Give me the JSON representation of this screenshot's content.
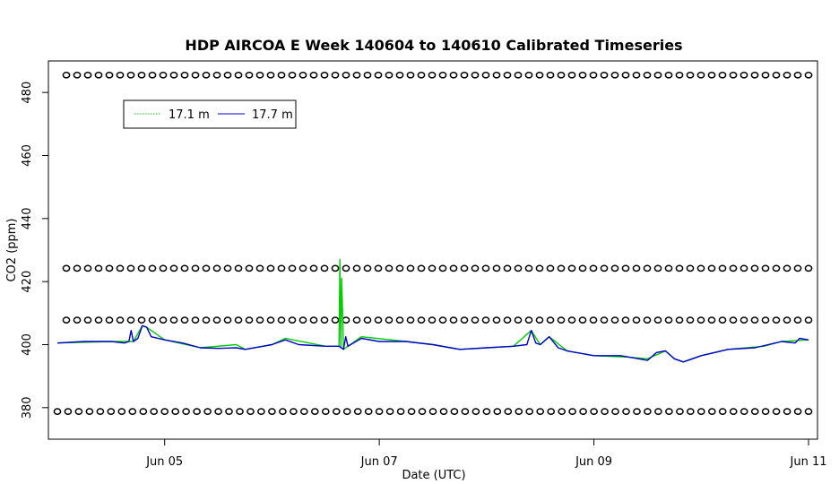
{
  "chart_data": {
    "type": "line",
    "title": "HDP AIRCOA E  Week 140604 to 140610  Calibrated Timeseries",
    "xlabel": "Date (UTC)",
    "ylabel": "CO2 (ppm)",
    "xlim": [
      "2014-06-03 22:00",
      "2014-06-11 02:00"
    ],
    "ylim": [
      370,
      490
    ],
    "x_tick_labels": [
      "Jun 05",
      "Jun 07",
      "Jun 09",
      "Jun 11"
    ],
    "x_tick_dates": [
      "2014-06-05",
      "2014-06-07",
      "2014-06-09",
      "2014-06-11"
    ],
    "y_ticks": [
      380,
      400,
      420,
      440,
      460,
      480
    ],
    "grid": false,
    "legend": {
      "position": "top-left",
      "entries": [
        {
          "name": "17.1 m",
          "color": "#00cc00"
        },
        {
          "name": "17.7 m",
          "color": "#0000cc"
        }
      ]
    },
    "series": [
      {
        "name": "17.1 m",
        "color": "#00cc00",
        "points": [
          [
            "2014-06-04 00:00",
            400.5
          ],
          [
            "2014-06-04 12:00",
            401.0
          ],
          [
            "2014-06-04 17:00",
            401.0
          ],
          [
            "2014-06-04 19:00",
            406.0
          ],
          [
            "2014-06-04 20:00",
            405.5
          ],
          [
            "2014-06-05 00:00",
            401.5
          ],
          [
            "2014-06-05 08:00",
            399.0
          ],
          [
            "2014-06-05 16:00",
            400.0
          ],
          [
            "2014-06-05 18:00",
            398.5
          ],
          [
            "2014-06-06 00:00",
            400.0
          ],
          [
            "2014-06-06 03:00",
            402.0
          ],
          [
            "2014-06-06 12:00",
            399.5
          ],
          [
            "2014-06-06 15:00",
            399.5
          ],
          [
            "2014-06-06 15:12",
            427.0
          ],
          [
            "2014-06-06 15:24",
            399.0
          ],
          [
            "2014-06-06 15:36",
            421.0
          ],
          [
            "2014-06-06 16:00",
            398.5
          ],
          [
            "2014-06-06 20:00",
            402.5
          ],
          [
            "2014-06-07 06:00",
            401.0
          ],
          [
            "2014-06-07 12:00",
            400.0
          ],
          [
            "2014-06-07 18:00",
            398.5
          ],
          [
            "2014-06-08 06:00",
            399.5
          ],
          [
            "2014-06-08 10:00",
            404.5
          ],
          [
            "2014-06-08 12:00",
            400.0
          ],
          [
            "2014-06-08 14:00",
            402.5
          ],
          [
            "2014-06-08 18:00",
            398.0
          ],
          [
            "2014-06-09 00:00",
            396.5
          ],
          [
            "2014-06-09 08:00",
            396.0
          ],
          [
            "2014-06-09 12:00",
            395.5
          ],
          [
            "2014-06-09 16:00",
            398.0
          ],
          [
            "2014-06-09 18:00",
            395.5
          ],
          [
            "2014-06-09 20:00",
            394.5
          ],
          [
            "2014-06-10 00:00",
            396.5
          ],
          [
            "2014-06-10 06:00",
            398.5
          ],
          [
            "2014-06-10 14:00",
            399.5
          ],
          [
            "2014-06-10 18:00",
            401.0
          ],
          [
            "2014-06-11 00:00",
            401.5
          ]
        ]
      },
      {
        "name": "17.7 m",
        "color": "#0000cc",
        "points": [
          [
            "2014-06-04 00:00",
            400.5
          ],
          [
            "2014-06-04 06:00",
            401.0
          ],
          [
            "2014-06-04 12:00",
            401.0
          ],
          [
            "2014-06-04 15:00",
            400.5
          ],
          [
            "2014-06-04 16:00",
            401.0
          ],
          [
            "2014-06-04 16:30",
            404.5
          ],
          [
            "2014-06-04 17:00",
            401.0
          ],
          [
            "2014-06-04 18:00",
            402.0
          ],
          [
            "2014-06-04 19:00",
            406.0
          ],
          [
            "2014-06-04 20:00",
            405.5
          ],
          [
            "2014-06-04 21:00",
            402.5
          ],
          [
            "2014-06-05 00:00",
            401.5
          ],
          [
            "2014-06-05 04:00",
            400.5
          ],
          [
            "2014-06-05 08:00",
            399.0
          ],
          [
            "2014-06-05 12:00",
            398.8
          ],
          [
            "2014-06-05 16:00",
            399.0
          ],
          [
            "2014-06-05 18:00",
            398.5
          ],
          [
            "2014-06-05 22:00",
            399.5
          ],
          [
            "2014-06-06 00:00",
            400.0
          ],
          [
            "2014-06-06 03:00",
            401.5
          ],
          [
            "2014-06-06 06:00",
            400.0
          ],
          [
            "2014-06-06 12:00",
            399.5
          ],
          [
            "2014-06-06 15:00",
            399.5
          ],
          [
            "2014-06-06 16:00",
            398.5
          ],
          [
            "2014-06-06 16:30",
            402.5
          ],
          [
            "2014-06-06 17:00",
            399.5
          ],
          [
            "2014-06-06 20:00",
            402.0
          ],
          [
            "2014-06-07 00:00",
            401.0
          ],
          [
            "2014-06-07 06:00",
            401.0
          ],
          [
            "2014-06-07 12:00",
            400.0
          ],
          [
            "2014-06-07 18:00",
            398.5
          ],
          [
            "2014-06-08 00:00",
            399.0
          ],
          [
            "2014-06-08 06:00",
            399.5
          ],
          [
            "2014-06-08 09:00",
            400.0
          ],
          [
            "2014-06-08 10:00",
            404.5
          ],
          [
            "2014-06-08 11:00",
            400.5
          ],
          [
            "2014-06-08 12:00",
            400.0
          ],
          [
            "2014-06-08 14:00",
            402.5
          ],
          [
            "2014-06-08 16:00",
            399.0
          ],
          [
            "2014-06-08 18:00",
            398.0
          ],
          [
            "2014-06-09 00:00",
            396.5
          ],
          [
            "2014-06-09 06:00",
            396.5
          ],
          [
            "2014-06-09 12:00",
            395.0
          ],
          [
            "2014-06-09 14:00",
            397.5
          ],
          [
            "2014-06-09 16:00",
            398.0
          ],
          [
            "2014-06-09 18:00",
            395.5
          ],
          [
            "2014-06-09 20:00",
            394.5
          ],
          [
            "2014-06-09 22:00",
            395.5
          ],
          [
            "2014-06-10 00:00",
            396.5
          ],
          [
            "2014-06-10 06:00",
            398.5
          ],
          [
            "2014-06-10 12:00",
            399.0
          ],
          [
            "2014-06-10 18:00",
            401.0
          ],
          [
            "2014-06-10 21:00",
            400.5
          ],
          [
            "2014-06-10 22:00",
            402.0
          ],
          [
            "2014-06-11 00:00",
            401.5
          ]
        ]
      }
    ],
    "reference_point_rows": [
      {
        "y": 485.5,
        "start": "2014-06-04 02:00",
        "end": "2014-06-11 00:00",
        "count": 70
      },
      {
        "y": 424.2,
        "start": "2014-06-04 02:00",
        "end": "2014-06-11 00:00",
        "count": 70
      },
      {
        "y": 407.8,
        "start": "2014-06-04 02:00",
        "end": "2014-06-11 00:00",
        "count": 70
      },
      {
        "y": 378.8,
        "start": "2014-06-04 00:00",
        "end": "2014-06-11 00:00",
        "count": 71
      }
    ]
  }
}
